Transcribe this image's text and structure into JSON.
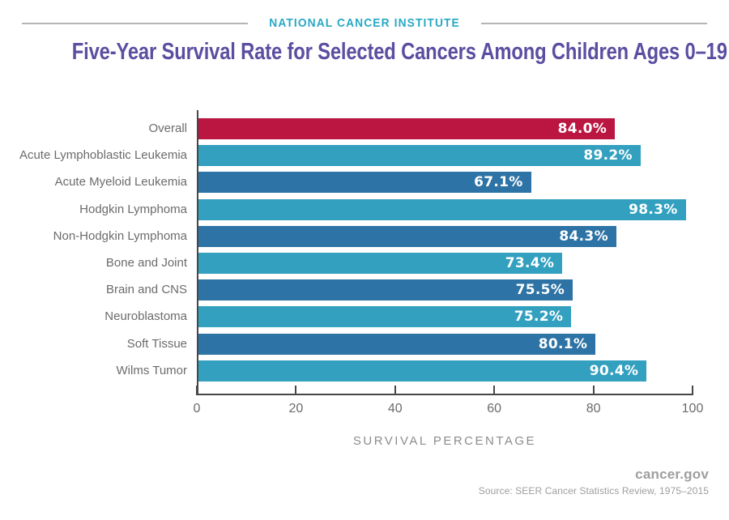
{
  "header": {
    "kicker": "NATIONAL CANCER INSTITUTE",
    "title": "Five-Year Survival Rate for Selected Cancers Among Children Ages 0–19"
  },
  "chart_data": {
    "type": "bar",
    "orientation": "horizontal",
    "title": "Five-Year Survival Rate for Selected Cancers Among Children Ages 0–19",
    "categories": [
      "Overall",
      "Acute Lymphoblastic Leukemia",
      "Acute Myeloid Leukemia",
      "Hodgkin Lymphoma",
      "Non-Hodgkin Lymphoma",
      "Bone and Joint",
      "Brain and CNS",
      "Neuroblastoma",
      "Soft Tissue",
      "Wilms Tumor"
    ],
    "values": [
      84.0,
      89.2,
      67.1,
      98.3,
      84.3,
      73.4,
      75.5,
      75.2,
      80.1,
      90.4
    ],
    "value_labels": [
      "84.0%",
      "89.2%",
      "67.1%",
      "98.3%",
      "84.3%",
      "73.4%",
      "75.5%",
      "75.2%",
      "80.1%",
      "90.4%"
    ],
    "bar_colors": [
      "#ba1641",
      "#33a0bf",
      "#2d73a5",
      "#33a0bf",
      "#2d73a5",
      "#33a0bf",
      "#2d73a5",
      "#33a0bf",
      "#2d73a5",
      "#33a0bf"
    ],
    "colors": {
      "highlight_red": "#ba1641",
      "light_blue": "#33a0bf",
      "dark_blue": "#2d73a5",
      "kicker_teal": "#28a9c4",
      "title_purple": "#5b4ea1"
    },
    "xlabel": "SURVIVAL PERCENTAGE",
    "ylabel": "",
    "xlim": [
      0,
      100
    ],
    "xticks": [
      0,
      20,
      40,
      60,
      80,
      100
    ],
    "grid": false,
    "legend": false
  },
  "footer": {
    "site": "cancer.gov",
    "source": "Source:  SEER Cancer Statistics Review, 1975–2015"
  }
}
